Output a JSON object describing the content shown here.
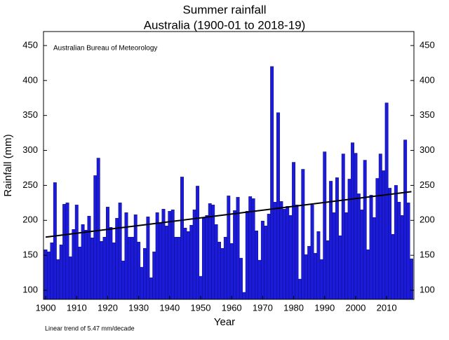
{
  "chart_data": {
    "type": "bar",
    "title": [
      "Summer rainfall",
      "Australia (1900-01 to 2018-19)"
    ],
    "annotation": "Australian Bureau of Meteorology",
    "xlabel": "Year",
    "ylabel": "Rainfall (mm)",
    "footnote": "Linear trend of 5.47 mm/decade",
    "color": "#1c1cd8",
    "edgecolor": "#0a0a8c",
    "x": [
      1900,
      1901,
      1902,
      1903,
      1904,
      1905,
      1906,
      1907,
      1908,
      1909,
      1910,
      1911,
      1912,
      1913,
      1914,
      1915,
      1916,
      1917,
      1918,
      1919,
      1920,
      1921,
      1922,
      1923,
      1924,
      1925,
      1926,
      1927,
      1928,
      1929,
      1930,
      1931,
      1932,
      1933,
      1934,
      1935,
      1936,
      1937,
      1938,
      1939,
      1940,
      1941,
      1942,
      1943,
      1944,
      1945,
      1946,
      1947,
      1948,
      1949,
      1950,
      1951,
      1952,
      1953,
      1954,
      1955,
      1956,
      1957,
      1958,
      1959,
      1960,
      1961,
      1962,
      1963,
      1964,
      1965,
      1966,
      1967,
      1968,
      1969,
      1970,
      1971,
      1972,
      1973,
      1974,
      1975,
      1976,
      1977,
      1978,
      1979,
      1980,
      1981,
      1982,
      1983,
      1984,
      1985,
      1986,
      1987,
      1988,
      1989,
      1990,
      1991,
      1992,
      1993,
      1994,
      1995,
      1996,
      1997,
      1998,
      1999,
      2000,
      2001,
      2002,
      2003,
      2004,
      2005,
      2006,
      2007,
      2008,
      2009,
      2010,
      2011,
      2012,
      2013,
      2014,
      2015,
      2016,
      2017,
      2018
    ],
    "values": [
      158,
      155,
      168,
      254,
      144,
      165,
      223,
      225,
      148,
      187,
      222,
      162,
      194,
      186,
      206,
      175,
      264,
      289,
      170,
      176,
      219,
      190,
      168,
      203,
      225,
      142,
      211,
      176,
      176,
      208,
      169,
      133,
      160,
      205,
      118,
      155,
      211,
      196,
      216,
      192,
      213,
      215,
      176,
      176,
      262,
      189,
      184,
      193,
      215,
      249,
      120,
      203,
      207,
      224,
      222,
      194,
      169,
      160,
      176,
      235,
      167,
      214,
      233,
      146,
      97,
      213,
      234,
      231,
      185,
      143,
      199,
      192,
      209,
      420,
      226,
      354,
      227,
      216,
      220,
      207,
      283,
      222,
      116,
      273,
      151,
      163,
      222,
      153,
      184,
      144,
      298,
      171,
      256,
      211,
      261,
      178,
      295,
      211,
      259,
      311,
      296,
      238,
      215,
      286,
      158,
      236,
      204,
      260,
      295,
      271,
      368,
      246,
      180,
      250,
      226,
      207,
      315,
      225,
      145
    ],
    "trend": {
      "x": [
        1900,
        2018
      ],
      "values": [
        176,
        241
      ],
      "color": "#000000"
    },
    "xlim": [
      1899.3,
      2018.8
    ],
    "xticks": [
      1900,
      1910,
      1920,
      1930,
      1940,
      1950,
      1960,
      1970,
      1980,
      1990,
      2000,
      2010
    ],
    "ylim": [
      87,
      470
    ],
    "yticks": [
      100,
      150,
      200,
      250,
      300,
      350,
      400,
      450
    ]
  }
}
